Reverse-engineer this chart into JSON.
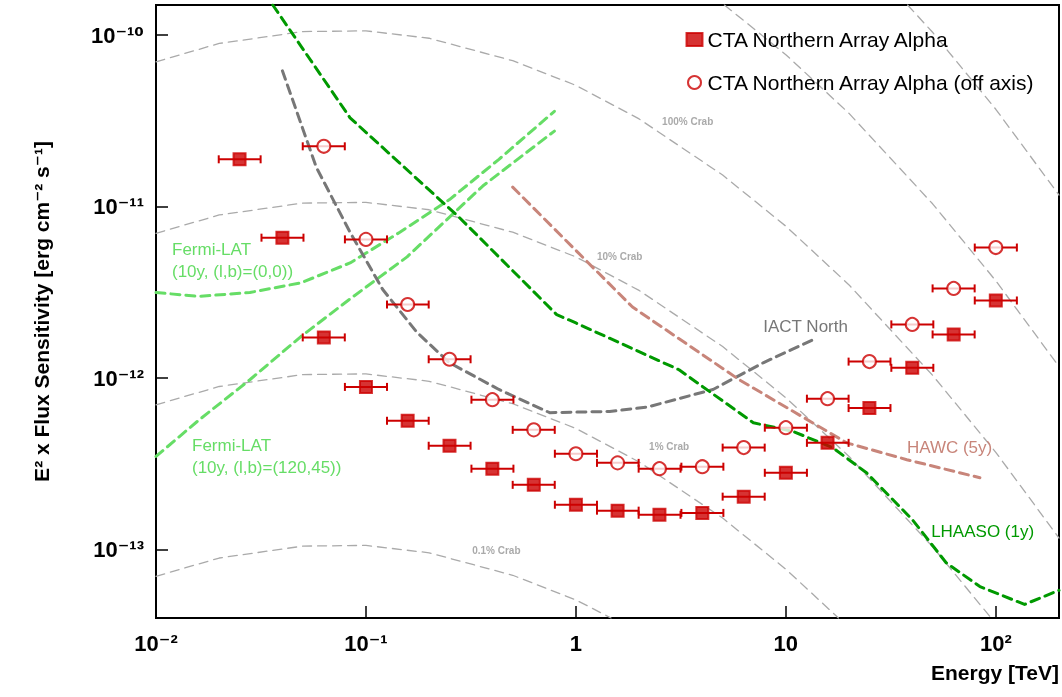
{
  "chart_data": {
    "type": "scatter",
    "xlabel": "Energy [TeV]",
    "ylabel": "E² x Flux Sensitivity [erg cm⁻² s⁻¹]",
    "log": "xy",
    "grid": false,
    "legend": "top right",
    "xlim": [
      0.01,
      200
    ],
    "xticks": [
      {
        "value": 0.01,
        "label": "10⁻²"
      },
      {
        "value": 0.1,
        "label": "10⁻¹"
      },
      1,
      10,
      {
        "value": 100,
        "label": "10²"
      }
    ],
    "ylim": [
      4e-14,
      1.5e-10
    ],
    "yticks": [
      {
        "value": 1e-13,
        "label": "10⁻¹³"
      },
      {
        "value": 1e-12,
        "label": "10⁻¹²"
      },
      {
        "value": 1e-11,
        "label": "10⁻¹¹"
      },
      {
        "value": 1e-10,
        "label": "10⁻¹⁰"
      }
    ],
    "series": [
      {
        "name": "0.1% Crab",
        "type": "line",
        "color": "#aaaaaa",
        "marker": "none",
        "line_style": "dashed",
        "x": [
          0.01,
          0.02,
          0.05,
          0.1,
          0.2,
          0.5,
          1,
          1.47
        ],
        "values": [
          7e-14,
          8.95e-14,
          1.05e-13,
          1.06e-13,
          9.6e-14,
          7.1e-14,
          5.1e-14,
          4e-14
        ]
      },
      {
        "name": "1% Crab",
        "type": "line",
        "color": "#aaaaaa",
        "marker": "none",
        "line_style": "dashed",
        "x": [
          0.01,
          0.02,
          0.05,
          0.1,
          0.2,
          0.5,
          1,
          2,
          5,
          10,
          17.8
        ],
        "values": [
          7e-13,
          8.95e-13,
          1.05e-12,
          1.06e-12,
          9.6e-13,
          7.1e-13,
          5.1e-13,
          3.25e-13,
          1.53e-13,
          7.7e-14,
          4e-14
        ]
      },
      {
        "name": "10% Crab",
        "type": "line",
        "color": "#aaaaaa",
        "marker": "none",
        "line_style": "dashed",
        "x": [
          0.01,
          0.02,
          0.05,
          0.1,
          0.2,
          0.5,
          1,
          2,
          5,
          10,
          20,
          50,
          95
        ],
        "values": [
          7e-12,
          8.95e-12,
          1.05e-11,
          1.06e-11,
          9.6e-12,
          7.1e-12,
          5.1e-12,
          3.25e-12,
          1.53e-12,
          7.7e-13,
          3.5e-13,
          1.04e-13,
          4e-14
        ]
      },
      {
        "name": "100% Crab",
        "type": "line",
        "color": "#aaaaaa",
        "marker": "none",
        "line_style": "dashed",
        "x": [
          0.01,
          0.02,
          0.05,
          0.1,
          0.2,
          0.5,
          1,
          2,
          5,
          10,
          20,
          50,
          100,
          200
        ],
        "values": [
          7e-11,
          8.95e-11,
          1.05e-10,
          1.06e-10,
          9.6e-11,
          7.1e-11,
          5.1e-11,
          3.25e-11,
          1.53e-11,
          7.7e-12,
          3.5e-12,
          1.04e-12,
          3.7e-13,
          1.17e-13
        ]
      },
      {
        "type": "line",
        "color": "#aaaaaa",
        "marker": "none",
        "line_style": "dashed",
        "x": [
          5.1,
          10,
          20,
          50,
          100,
          200
        ],
        "values": [
          1.5e-10,
          7.7e-11,
          3.5e-11,
          1.04e-11,
          3.7e-12,
          1.17e-12
        ]
      },
      {
        "type": "line",
        "color": "#aaaaaa",
        "marker": "none",
        "line_style": "dashed",
        "x": [
          38,
          50,
          100,
          200
        ],
        "values": [
          1.5e-10,
          1.04e-10,
          3.7e-11,
          1.17e-11
        ]
      },
      {
        "name": "Fermi-LAT\n(10y, (l,b)=(0,0))",
        "type": "line",
        "color": "#66dd66",
        "marker": "none",
        "line_style": "dashed",
        "x": [
          0.01,
          0.016,
          0.028,
          0.049,
          0.084,
          0.145,
          0.25,
          0.43,
          0.79
        ],
        "values": [
          3.16e-12,
          3e-12,
          3.16e-12,
          3.6e-12,
          4.7e-12,
          7.1e-12,
          1.1e-11,
          1.89e-11,
          3.6e-11
        ]
      },
      {
        "name": "Fermi-LAT\n(10y, (l,b)=(120,45))",
        "type": "line",
        "color": "#66dd66",
        "marker": "none",
        "line_style": "dashed",
        "x": [
          0.01,
          0.016,
          0.028,
          0.049,
          0.084,
          0.157,
          0.36,
          0.79
        ],
        "values": [
          3.5e-13,
          5.7e-13,
          9.8e-13,
          1.75e-12,
          2.9e-12,
          5.1e-12,
          1.32e-11,
          2.76e-11
        ]
      },
      {
        "name": "IACT North",
        "type": "line",
        "color": "#777777",
        "marker": "none",
        "line_style": "dashed",
        "x": [
          0.04,
          0.058,
          0.084,
          0.12,
          0.175,
          0.25,
          0.43,
          0.75,
          1.45,
          2.2,
          4.5,
          7.8,
          13.5
        ],
        "values": [
          6.2e-11,
          1.7e-11,
          7.1e-12,
          3.3e-12,
          1.85e-12,
          1.23e-12,
          8.6e-13,
          6.3e-13,
          6.4e-13,
          6.8e-13,
          8.6e-13,
          1.23e-12,
          1.68e-12
        ]
      },
      {
        "name": "HAWC (5y)",
        "type": "line",
        "color": "#c8857a",
        "marker": "none",
        "line_style": "dashed",
        "x": [
          0.5,
          1.86,
          6,
          19.5,
          37.7,
          84
        ],
        "values": [
          1.3e-11,
          2.6e-12,
          9.8e-13,
          4.2e-13,
          3.35e-13,
          2.63e-13
        ]
      },
      {
        "name": "LHAASO (1y)",
        "type": "line",
        "color": "#009900",
        "marker": "none",
        "line_style": "dashed",
        "x": [
          0.036,
          0.084,
          0.28,
          0.81,
          1,
          3.1,
          7,
          10.8,
          16.7,
          24.3,
          40,
          58,
          84,
          137,
          200
        ],
        "values": [
          1.5e-10,
          3.3e-11,
          8.6e-12,
          2.35e-12,
          2.1e-12,
          1.12e-12,
          5.5e-13,
          4.9e-13,
          3.94e-13,
          2.8e-13,
          1.5e-13,
          8.4e-14,
          6.1e-14,
          4.8e-14,
          5.8e-14
        ]
      },
      {
        "name": "CTA Northern Array Alpha",
        "color": "#cc0000",
        "marker": "square",
        "x": [
          0.025,
          0.04,
          0.063,
          0.1,
          0.158,
          0.25,
          0.4,
          0.63,
          1,
          1.58,
          2.5,
          4,
          6.3,
          10,
          15.8,
          25,
          40,
          63,
          100
        ],
        "values": [
          1.89e-11,
          6.6e-12,
          1.73e-12,
          8.9e-13,
          5.65e-13,
          4.04e-13,
          2.97e-13,
          2.39e-13,
          1.83e-13,
          1.69e-13,
          1.6e-13,
          1.64e-13,
          2.04e-13,
          2.81e-13,
          4.2e-13,
          6.7e-13,
          1.15e-12,
          1.8e-12,
          2.84e-12
        ],
        "xerrors": [
          [
            0.0199,
            0.0315
          ],
          [
            0.0318,
            0.0504
          ],
          [
            0.05,
            0.0793
          ],
          [
            0.0794,
            0.126
          ],
          [
            0.126,
            0.199
          ],
          [
            0.199,
            0.315
          ],
          [
            0.318,
            0.504
          ],
          [
            0.5,
            0.793
          ],
          [
            0.794,
            1.26
          ],
          [
            1.26,
            1.99
          ],
          [
            1.99,
            3.15
          ],
          [
            3.18,
            5.04
          ],
          [
            5,
            7.93
          ],
          [
            7.94,
            12.6
          ],
          [
            12.6,
            19.9
          ],
          [
            19.9,
            31.5
          ],
          [
            31.8,
            50.4
          ],
          [
            50,
            79.3
          ],
          [
            79.4,
            126
          ]
        ]
      },
      {
        "name": "CTA Northern Array Alpha (off axis)",
        "color": "#cc0000",
        "marker": "circle",
        "x": [
          0.063,
          0.1,
          0.158,
          0.25,
          0.4,
          0.63,
          1,
          1.58,
          2.5,
          4,
          6.3,
          10,
          15.8,
          25,
          40,
          63,
          100
        ],
        "values": [
          2.25e-11,
          6.45e-12,
          2.69e-12,
          1.29e-12,
          7.5e-13,
          5e-13,
          3.63e-13,
          3.21e-13,
          2.97e-13,
          3.05e-13,
          3.94e-13,
          5.15e-13,
          7.6e-13,
          1.25e-12,
          2.06e-12,
          3.34e-12,
          5.78e-12
        ],
        "xerrors": [
          [
            0.05,
            0.0793
          ],
          [
            0.0794,
            0.126
          ],
          [
            0.126,
            0.199
          ],
          [
            0.199,
            0.315
          ],
          [
            0.318,
            0.504
          ],
          [
            0.5,
            0.793
          ],
          [
            0.794,
            1.26
          ],
          [
            1.26,
            1.99
          ],
          [
            1.99,
            3.15
          ],
          [
            3.18,
            5.04
          ],
          [
            5,
            7.93
          ],
          [
            7.94,
            12.6
          ],
          [
            12.6,
            19.9
          ],
          [
            19.9,
            31.5
          ],
          [
            31.8,
            50.4
          ],
          [
            50,
            79.3
          ],
          [
            79.4,
            126
          ]
        ]
      }
    ]
  }
}
